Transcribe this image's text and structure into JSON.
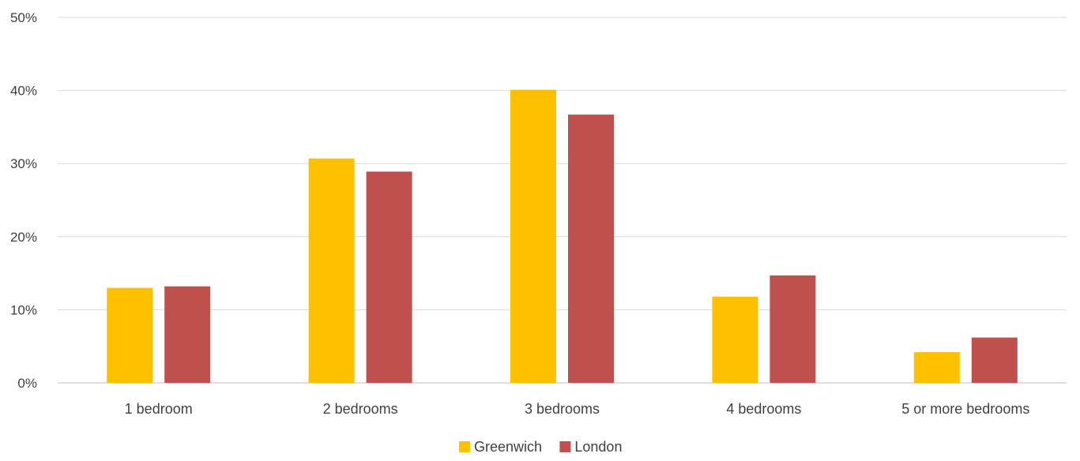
{
  "chart_data": {
    "type": "bar",
    "title": "",
    "xlabel": "",
    "ylabel": "",
    "categories": [
      "1 bedroom",
      "2 bedrooms",
      "3 bedrooms",
      "4 bedrooms",
      "5 or more bedrooms"
    ],
    "series": [
      {
        "name": "Greenwich",
        "color": "#FFC000",
        "values": [
          13.0,
          30.7,
          40.1,
          11.8,
          4.2
        ]
      },
      {
        "name": "London",
        "color": "#C0504D",
        "values": [
          13.2,
          28.9,
          36.7,
          14.7,
          6.2
        ]
      }
    ],
    "ylim": [
      0,
      50
    ],
    "yticks": [
      "0%",
      "10%",
      "20%",
      "30%",
      "40%",
      "50%"
    ],
    "ytick_values": [
      0,
      10,
      20,
      30,
      40,
      50
    ],
    "grid": true,
    "legend_position": "bottom-center"
  }
}
